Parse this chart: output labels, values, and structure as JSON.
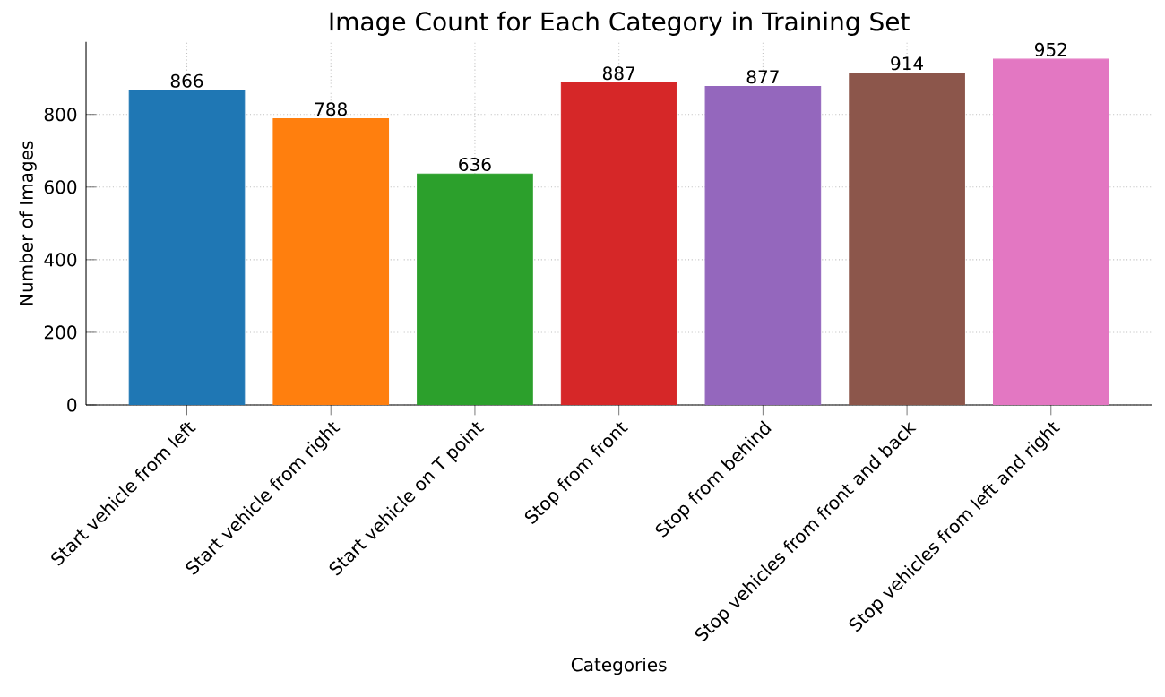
{
  "chart_data": {
    "type": "bar",
    "title": "Image Count for Each Category in Training Set",
    "xlabel": "Categories",
    "ylabel": "Number of Images",
    "categories": [
      "Start vehicle from left",
      "Start vehicle from right",
      "Start vehicle on T point",
      "Stop from front",
      "Stop from behind",
      "Stop vehicles from front and back",
      "Stop vehicles from left and right"
    ],
    "values": [
      866,
      788,
      636,
      887,
      877,
      914,
      952
    ],
    "colors": [
      "#1f77b4",
      "#ff7f0e",
      "#2ca02c",
      "#d62728",
      "#9467bd",
      "#8c564b",
      "#e377c2"
    ],
    "ylim": [
      0,
      1000
    ],
    "yticks": [
      0,
      200,
      400,
      600,
      800
    ],
    "grid": true,
    "data_labels": true
  }
}
